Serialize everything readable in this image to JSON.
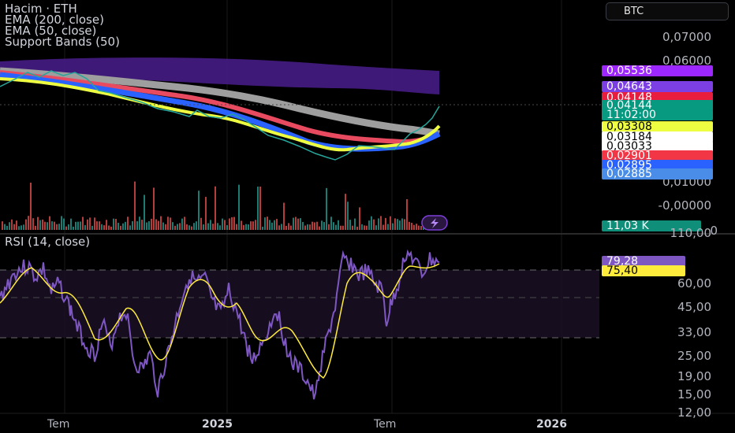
{
  "legends": {
    "volume": "Hacim · ETH",
    "ema200": "EMA (200, close)",
    "ema50": "EMA (50, close)",
    "bands": "Support Bands (50)",
    "rsi": "RSI (14, close)"
  },
  "symbol_button": "BTC",
  "price_axis": [
    "0,07000",
    "0,06000",
    "0,01000",
    "-0,00000",
    "0"
  ],
  "price_tags": [
    {
      "text": "0,05536",
      "bg": "#9c27ff",
      "fg": "#ffffff"
    },
    {
      "text": "0,04643",
      "bg": "#7b3fe4",
      "fg": "#ffffff"
    },
    {
      "text": "0,04148",
      "bg": "#e91e3f",
      "fg": "#ffffff"
    },
    {
      "text": "0,04144",
      "bg": "#089981",
      "fg": "#ffffff"
    },
    {
      "text": "11:02:00",
      "bg": "#089981",
      "fg": "#ffffff"
    },
    {
      "text": "0,03308",
      "bg": "#eeff41",
      "fg": "#000000"
    },
    {
      "text": "0,03184",
      "bg": "#ffffff",
      "fg": "#000000"
    },
    {
      "text": "0,03033",
      "bg": "#ffffff",
      "fg": "#000000"
    },
    {
      "text": "0,02901",
      "bg": "#f23645",
      "fg": "#ffffff"
    },
    {
      "text": "0,02895",
      "bg": "#2962ff",
      "fg": "#ffffff"
    },
    {
      "text": "0,02885",
      "bg": "#4a8de8",
      "fg": "#ffffff"
    }
  ],
  "volume_tag": {
    "text": "11,03 K",
    "bg": "#0f8f7a"
  },
  "rsi_axis": [
    "110,00",
    "60,00",
    "45,00",
    "33,00",
    "25,00",
    "19,00",
    "15,00",
    "12,00"
  ],
  "rsi_tags": [
    {
      "text": "79,28",
      "bg": "#7e57c2",
      "fg": "#ffffff"
    },
    {
      "text": "75,40",
      "bg": "#ffeb3b",
      "fg": "#000000"
    }
  ],
  "time_axis": [
    "Tem",
    "2025",
    "Tem",
    "2026"
  ],
  "colors": {
    "background": "#000000",
    "ema200": "#b0b0b0",
    "ema50": "#f23645",
    "band_fill": "#4a1d8c",
    "ema_yellow": "#eeff41",
    "band_blue": "#2962ff",
    "price_line": "#26a69a",
    "volume_up": "#26a69a",
    "volume_down": "#ef5350",
    "rsi_line": "#7e57c2",
    "rsi_ma": "#ffeb3b"
  },
  "icons": {
    "alert": "lightning-icon"
  }
}
